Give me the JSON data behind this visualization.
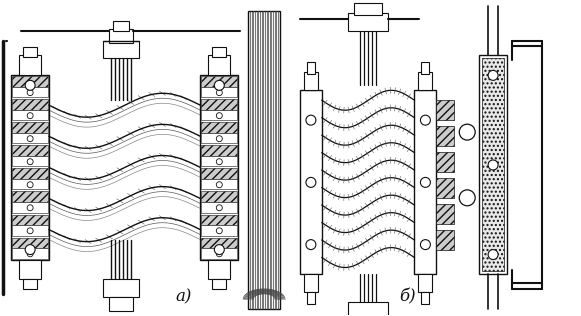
{
  "bg_color": "#ffffff",
  "line_color": "#111111",
  "label_a": "a)",
  "label_b": "б)",
  "fig_width": 5.81,
  "fig_height": 3.16,
  "dpi": 100
}
